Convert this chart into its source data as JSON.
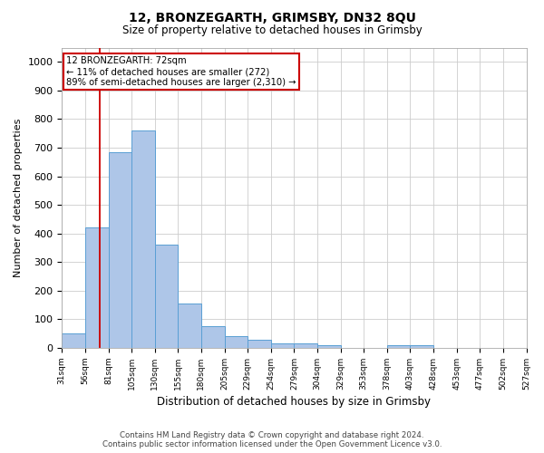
{
  "title": "12, BRONZEGARTH, GRIMSBY, DN32 8QU",
  "subtitle": "Size of property relative to detached houses in Grimsby",
  "xlabel": "Distribution of detached houses by size in Grimsby",
  "ylabel": "Number of detached properties",
  "bar_values": [
    50,
    420,
    685,
    760,
    360,
    155,
    75,
    40,
    28,
    17,
    17,
    10,
    0,
    0,
    10,
    10,
    0,
    0,
    0,
    0
  ],
  "categories": [
    "31sqm",
    "56sqm",
    "81sqm",
    "105sqm",
    "130sqm",
    "155sqm",
    "180sqm",
    "205sqm",
    "229sqm",
    "254sqm",
    "279sqm",
    "304sqm",
    "329sqm",
    "353sqm",
    "378sqm",
    "403sqm",
    "428sqm",
    "453sqm",
    "477sqm",
    "502sqm",
    "527sqm"
  ],
  "bar_color": "#aec6e8",
  "bar_edge_color": "#5a9fd4",
  "annotation_text": "12 BRONZEGARTH: 72sqm\n← 11% of detached houses are smaller (272)\n89% of semi-detached houses are larger (2,310) →",
  "annotation_box_color": "#ffffff",
  "annotation_box_edge": "#cc0000",
  "ylim": [
    0,
    1050
  ],
  "yticks": [
    0,
    100,
    200,
    300,
    400,
    500,
    600,
    700,
    800,
    900,
    1000
  ],
  "footer_line1": "Contains HM Land Registry data © Crown copyright and database right 2024.",
  "footer_line2": "Contains public sector information licensed under the Open Government Licence v3.0."
}
